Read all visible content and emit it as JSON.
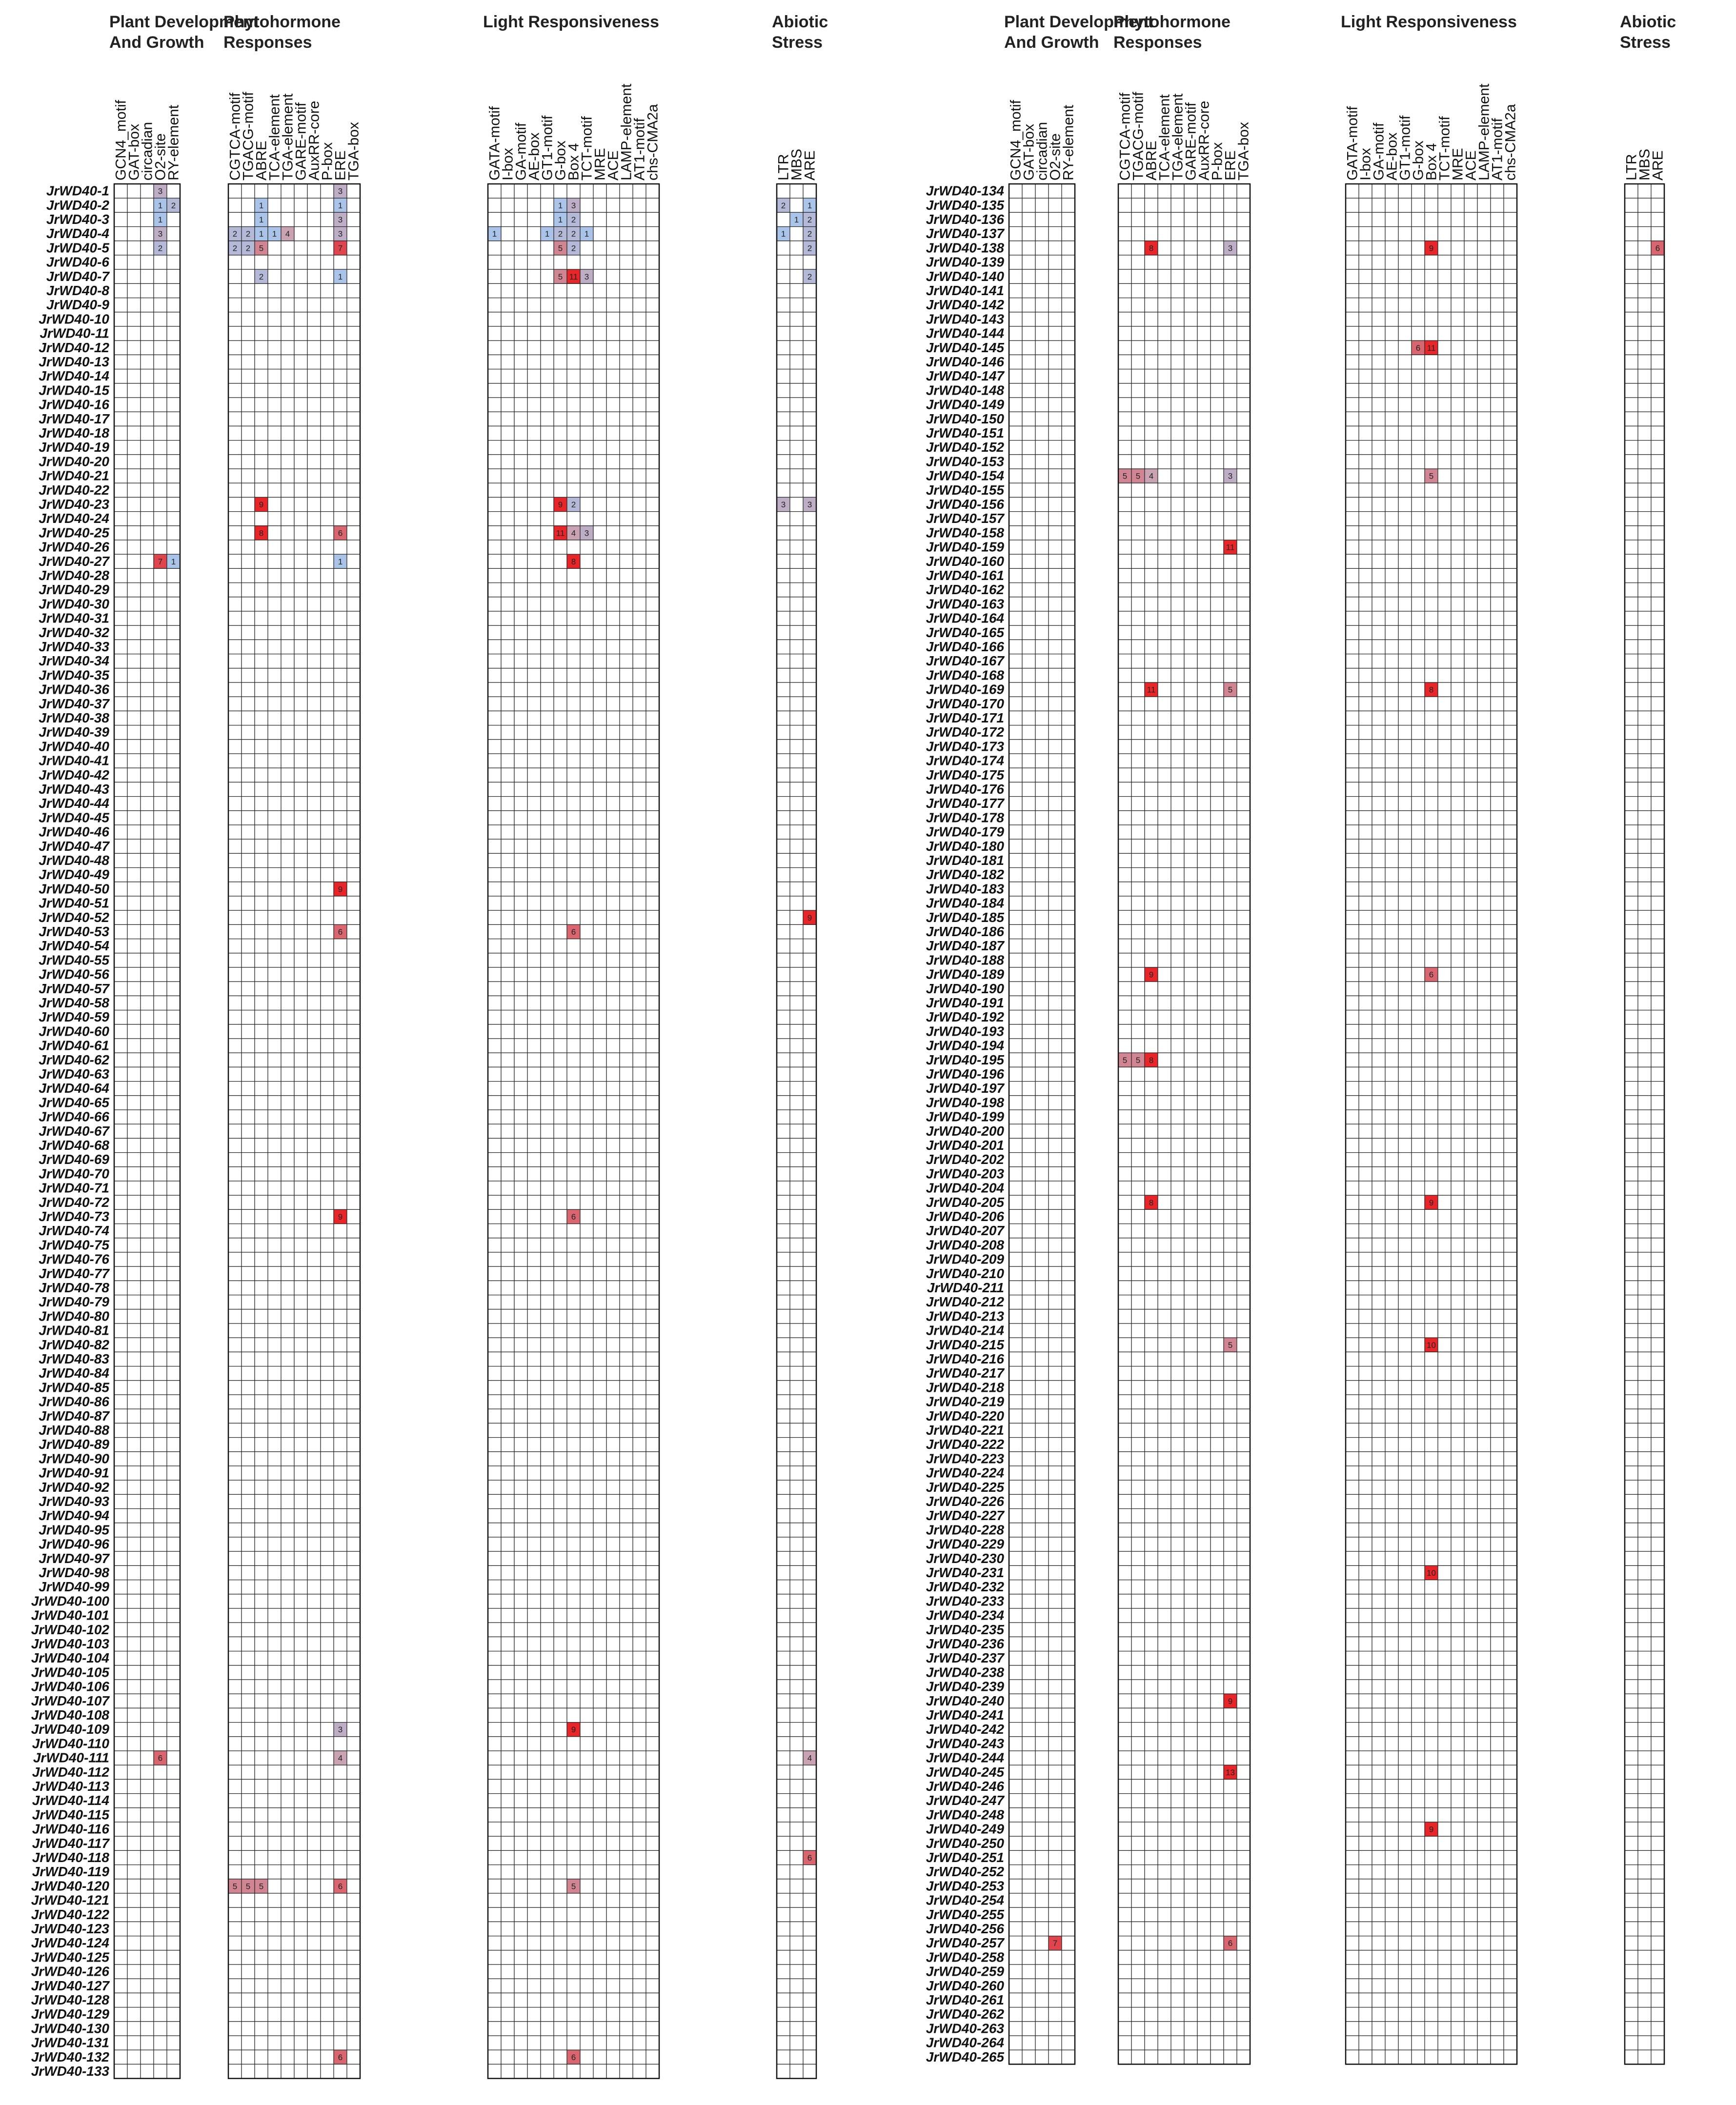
{
  "chart_data": {
    "type": "heatmap",
    "title": "",
    "panels": [
      {
        "rows_from": 1,
        "rows_to": 133
      },
      {
        "rows_from": 134,
        "rows_to": 265
      }
    ],
    "row_prefix": "JrWD40-",
    "groups": [
      {
        "title": "Plant Development\nAnd Growth",
        "columns": [
          "GCN4_motif",
          "GAT-box",
          "circadian",
          "O2-site",
          "RY-element"
        ]
      },
      {
        "title": "Phytohormone\nResponses",
        "columns": [
          "CGTCA-motif",
          "TGACG-motif",
          "ABRE",
          "TCA-element",
          "TGA-element",
          "GARE-motif",
          "AuxRR-core",
          "P-box",
          "ERE",
          "TGA-box"
        ]
      },
      {
        "title": "Light Responsiveness",
        "columns": [
          "GATA-motif",
          "I-box",
          "GA-motif",
          "AE-box",
          "GT1-motif",
          "G-box",
          "Box 4",
          "TCT-motif",
          "MRE",
          "ACE",
          "LAMP-element",
          "AT1-motif",
          "chs-CMA2a"
        ]
      },
      {
        "title": "Abiotic\nStress",
        "columns": [
          "LTR",
          "MBS",
          "ARE"
        ]
      }
    ],
    "color_scale": {
      "low": "#a9c4e8",
      "mid": "#c9a3b4",
      "high": "#e8262a",
      "max": 13
    },
    "values_note": "Row index -> {column: count}; blank cells are 0.",
    "values": {
      "1": {
        "O2-site": 3,
        "ERE": 3
      },
      "2": {
        "O2-site": 1,
        "RY-element": 2,
        "ABRE": 1,
        "ERE": 1,
        "G-box": 1,
        "Box 4": 3,
        "LTR": 2,
        "ARE": 1
      },
      "3": {
        "O2-site": 1,
        "ABRE": 1,
        "ERE": 3,
        "G-box": 1,
        "Box 4": 2,
        "MBS": 1,
        "ARE": 2
      },
      "4": {
        "O2-site": 3,
        "CGTCA-motif": 2,
        "TGACG-motif": 2,
        "ABRE": 1,
        "TCA-element": 1,
        "TGA-element": 4,
        "ERE": 3,
        "GATA-motif": 1,
        "GT1-motif": 1,
        "G-box": 2,
        "Box 4": 2,
        "TCT-motif": 1,
        "LTR": 1,
        "ARE": 2
      },
      "5": {
        "O2-site": 2,
        "CGTCA-motif": 2,
        "TGACG-motif": 2,
        "ABRE": 5,
        "ERE": 7,
        "G-box": 5,
        "Box 4": 2,
        "ARE": 2
      },
      "7": {
        "ABRE": 2,
        "ERE": 1,
        "G-box": 5,
        "Box 4": 11,
        "TCT-motif": 3,
        "ARE": 2
      },
      "23": {
        "ABRE": 9,
        "G-box": 9,
        "Box 4": 2,
        "LTR": 3,
        "ARE": 3
      },
      "25": {
        "ABRE": 8,
        "ERE": 6,
        "G-box": 11,
        "Box 4": 4,
        "TCT-motif": 3
      },
      "27": {
        "O2-site": 7,
        "RY-element": 1,
        "ERE": 1,
        "Box 4": 8
      },
      "50": {
        "ERE": 9
      },
      "52": {
        "ARE": 9
      },
      "53": {
        "ERE": 6,
        "Box 4": 6
      },
      "73": {
        "ERE": 9,
        "Box 4": 6
      },
      "109": {
        "ERE": 3,
        "Box 4": 9
      },
      "111": {
        "O2-site": 6,
        "ERE": 4,
        "ARE": 4
      },
      "118": {
        "ARE": 6
      },
      "120": {
        "CGTCA-motif": 5,
        "TGACG-motif": 5,
        "ABRE": 5,
        "ERE": 6,
        "Box 4": 5
      },
      "132": {
        "ERE": 6,
        "Box 4": 6
      },
      "138": {
        "ABRE": 8,
        "ERE": 3,
        "Box 4": 9,
        "ARE": 6
      },
      "145": {
        "G-box": 6,
        "Box 4": 11
      },
      "154": {
        "CGTCA-motif": 5,
        "TGACG-motif": 5,
        "ABRE": 4,
        "ERE": 3,
        "Box 4": 5
      },
      "159": {
        "ERE": 11
      },
      "169": {
        "ABRE": 11,
        "ERE": 5,
        "Box 4": 8
      },
      "189": {
        "ABRE": 9,
        "Box 4": 6
      },
      "195": {
        "CGTCA-motif": 5,
        "TGACG-motif": 5,
        "ABRE": 8
      },
      "205": {
        "ABRE": 8,
        "Box 4": 9
      },
      "215": {
        "ERE": 5,
        "Box 4": 10
      },
      "231": {
        "Box 4": 10
      },
      "240": {
        "ERE": 9
      },
      "245": {
        "ERE": 13
      },
      "249": {
        "Box 4": 9
      },
      "257": {
        "O2-site": 7,
        "ERE": 6
      }
    }
  }
}
